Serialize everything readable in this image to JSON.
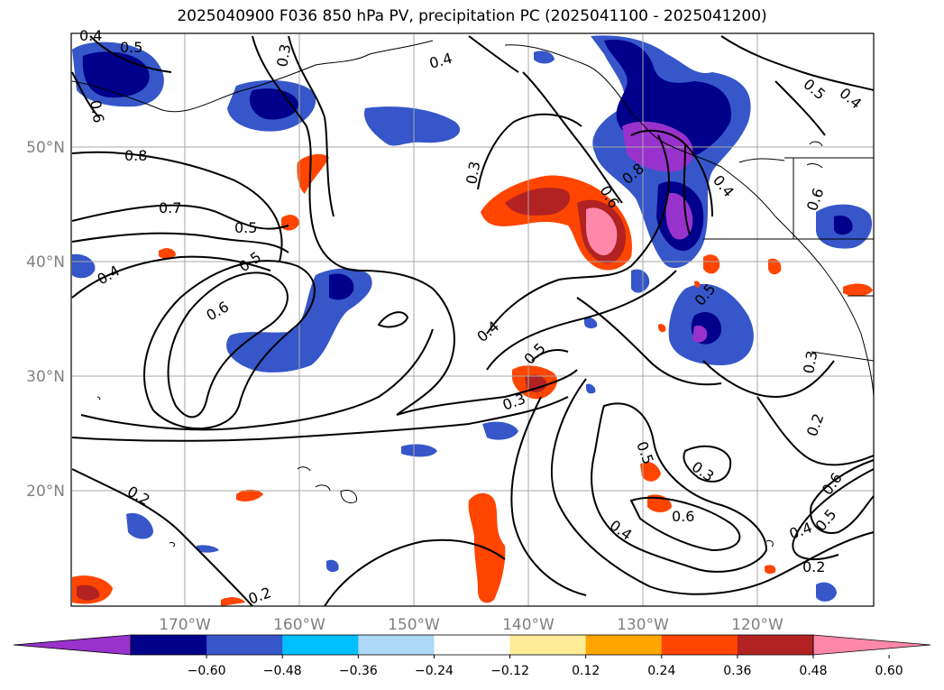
{
  "title": "2025040900 F036 850 hPa PV, precipitation PC (2025041100 - 2025041200)",
  "map": {
    "lon_labels": [
      "170°W",
      "160°W",
      "150°W",
      "140°W",
      "130°W",
      "120°W"
    ],
    "lat_labels": [
      "50°N",
      "40°N",
      "30°N",
      "20°N"
    ],
    "contour_labels": [
      "0.4",
      "0.5",
      "0.6",
      "0.8",
      "0.7",
      "0.5",
      "0.4",
      "0.5",
      "0.6",
      "0.4",
      "0.3",
      "0.6",
      "0.8",
      "0.4",
      "0.5",
      "0.3",
      "0.4",
      "0.5",
      "0.3",
      "0.5",
      "0.3",
      "0.6",
      "0.4",
      "0.2",
      "0.2",
      "0.2",
      "0.4",
      "0.5",
      "0.6",
      "0.2",
      "0.3",
      "0.5",
      "0.4",
      "0.6"
    ]
  },
  "colorbar": {
    "ticks": [
      "−0.60",
      "−0.48",
      "−0.36",
      "−0.24",
      "−0.12",
      "0.12",
      "0.24",
      "0.36",
      "0.48",
      "0.60"
    ],
    "colors": [
      "#9932cc",
      "#00008b",
      "#3656c9",
      "#00bfff",
      "#add8f6",
      "#ffffff",
      "#ffeb96",
      "#ffa500",
      "#ff4500",
      "#b22222",
      "#ff88aa"
    ]
  }
}
